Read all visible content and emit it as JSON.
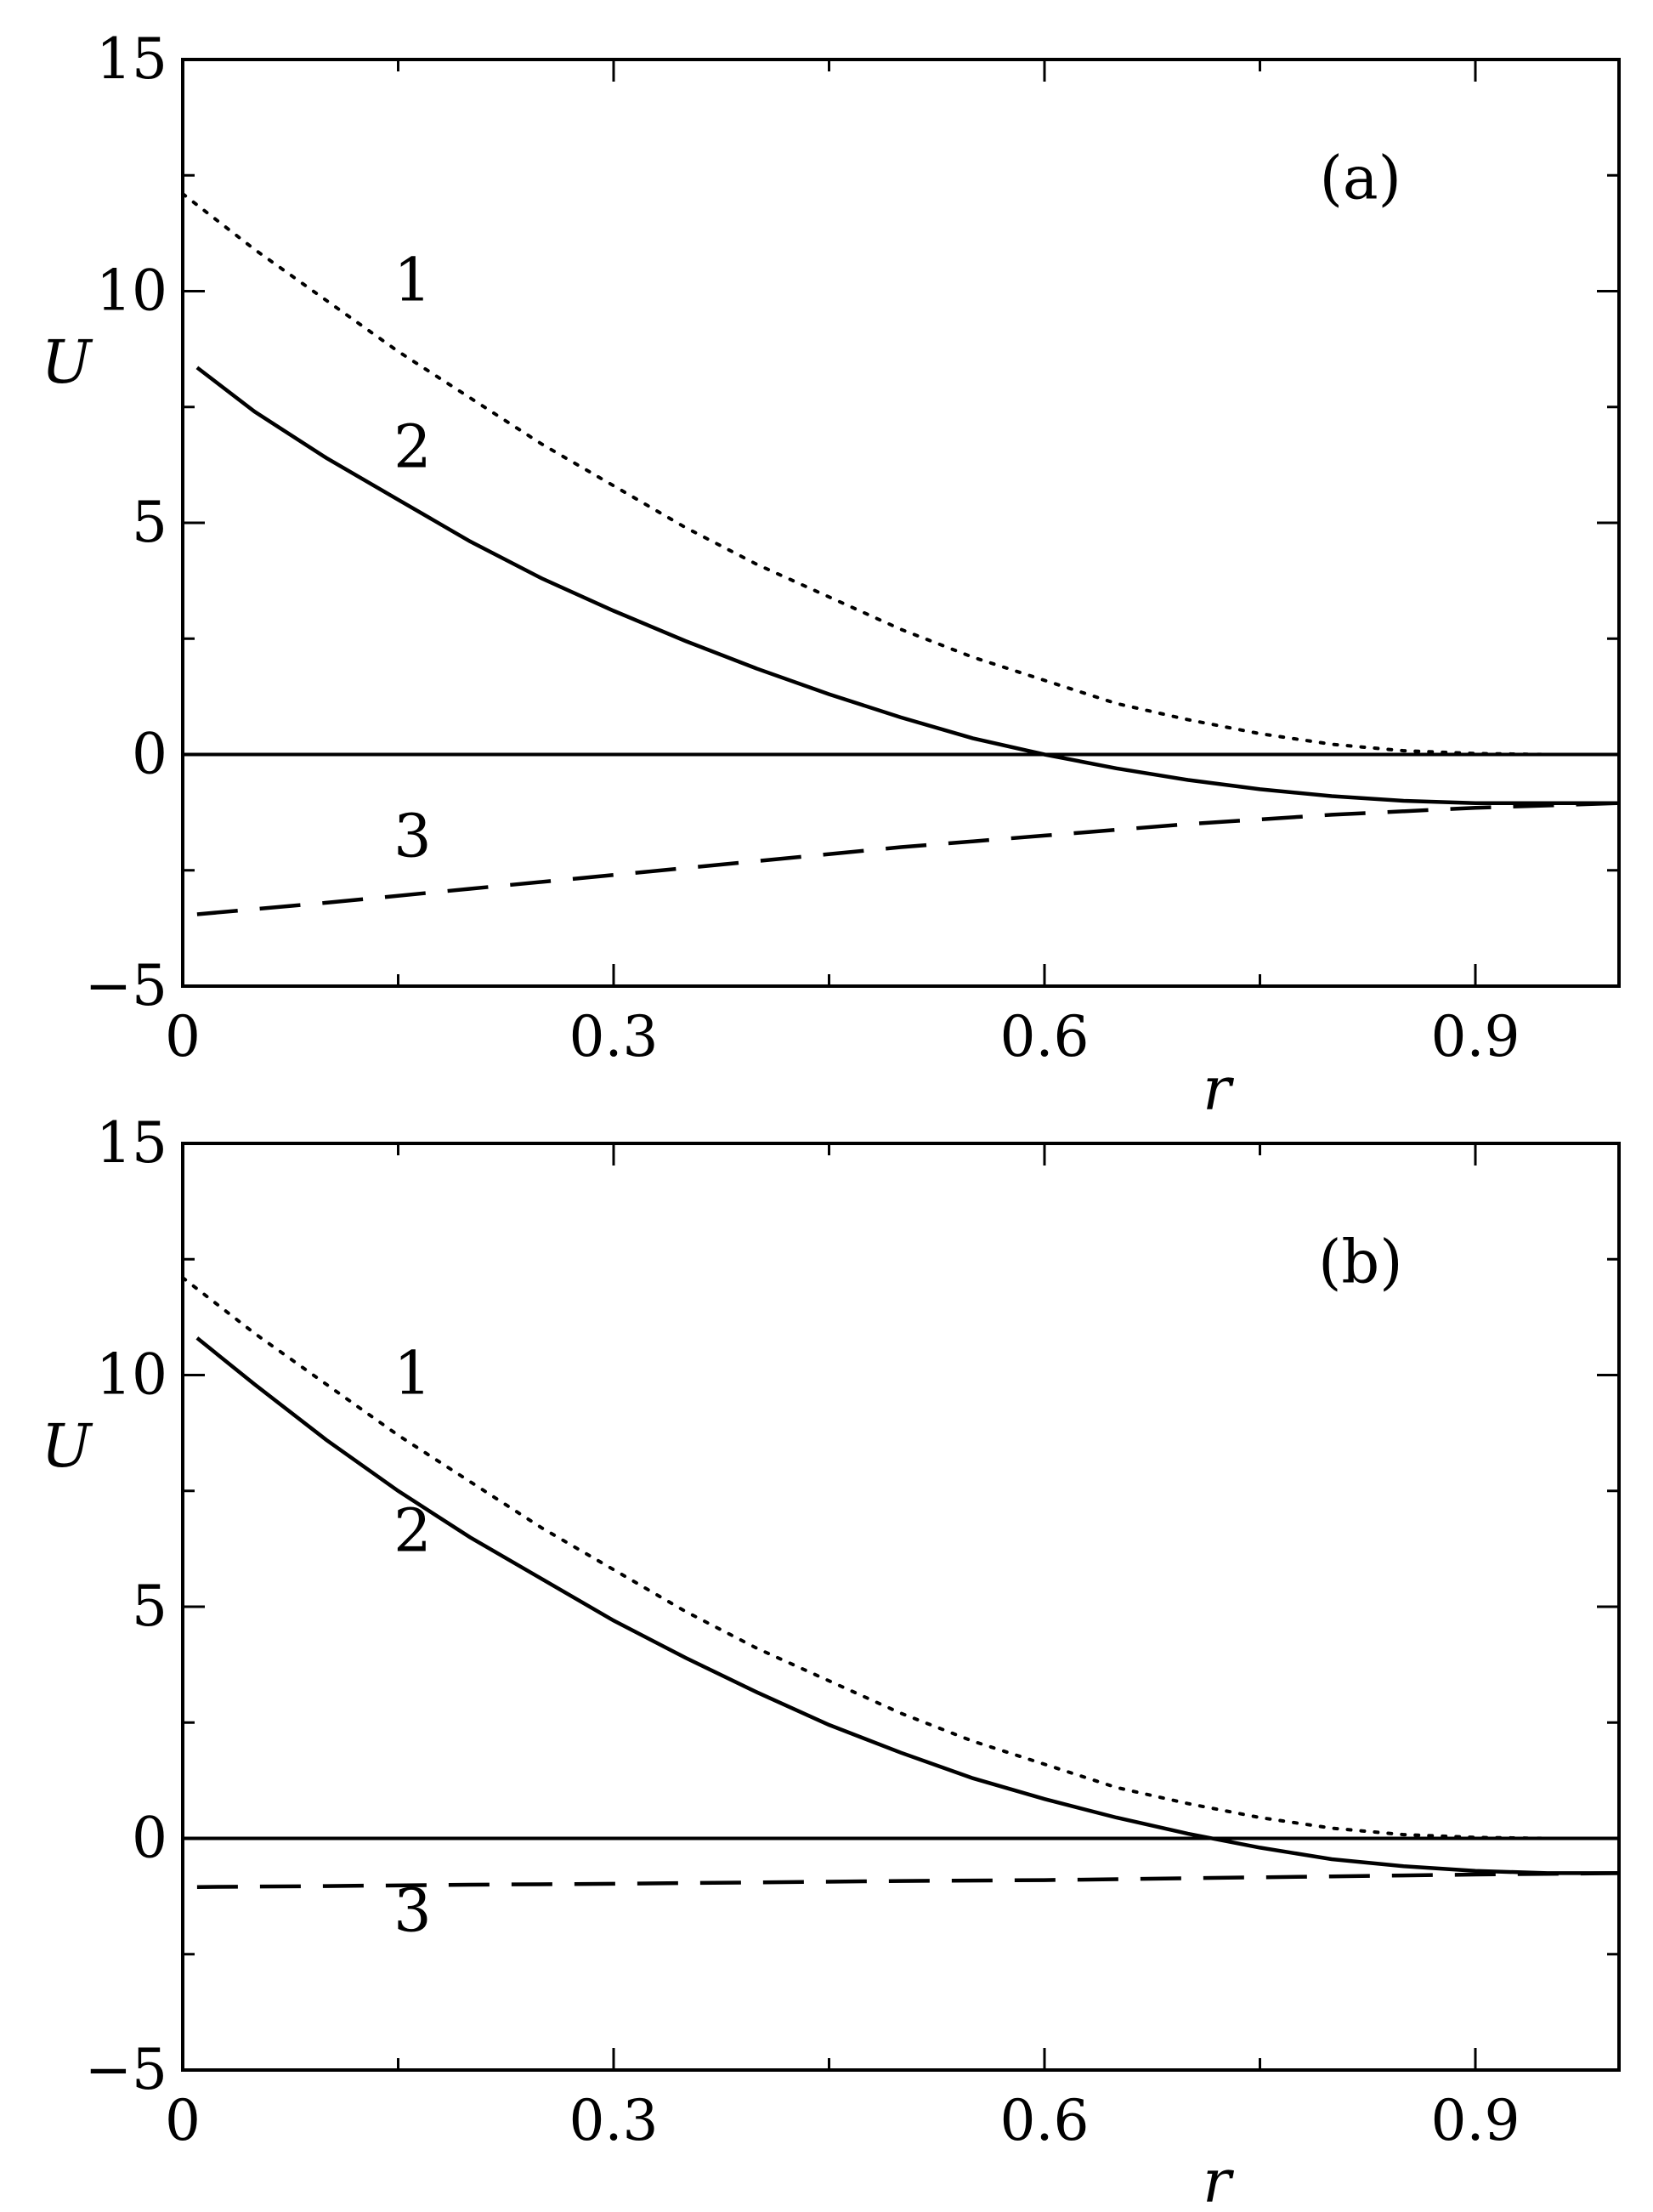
{
  "chart_data": [
    {
      "type": "line",
      "panel_label": "(a)",
      "xlabel": "r",
      "ylabel": "U",
      "xlim": [
        0,
        1.0
      ],
      "ylim": [
        -5,
        15
      ],
      "xticks": [
        0,
        0.3,
        0.6,
        0.9
      ],
      "xtick_labels": [
        "0",
        "0.3",
        "0.6",
        "0.9"
      ],
      "yticks": [
        -5,
        0,
        5,
        10,
        15
      ],
      "ytick_labels": [
        "−5",
        "0",
        "5",
        "10",
        "15"
      ],
      "grid": false,
      "legend": "none",
      "reference_line_y": 0,
      "series": [
        {
          "label": "1",
          "style": "dotted",
          "label_at": [
            0.16,
            9.8
          ],
          "x": [
            0,
            0.05,
            0.1,
            0.15,
            0.2,
            0.25,
            0.3,
            0.35,
            0.4,
            0.45,
            0.5,
            0.55,
            0.6,
            0.65,
            0.7,
            0.75,
            0.8,
            0.85,
            0.9,
            0.95,
            1.0
          ],
          "y": [
            12.1,
            10.9,
            9.8,
            8.7,
            7.7,
            6.7,
            5.8,
            4.9,
            4.1,
            3.4,
            2.7,
            2.1,
            1.6,
            1.1,
            0.75,
            0.45,
            0.22,
            0.08,
            0.02,
            0.0,
            0.0
          ]
        },
        {
          "label": "2",
          "style": "solid",
          "label_at": [
            0.16,
            6.2
          ],
          "x": [
            0.01,
            0.05,
            0.1,
            0.15,
            0.2,
            0.25,
            0.3,
            0.35,
            0.4,
            0.45,
            0.5,
            0.55,
            0.6,
            0.65,
            0.7,
            0.75,
            0.8,
            0.85,
            0.9,
            0.95,
            1.0
          ],
          "y": [
            8.35,
            7.4,
            6.4,
            5.5,
            4.6,
            3.8,
            3.1,
            2.45,
            1.85,
            1.3,
            0.8,
            0.35,
            0.0,
            -0.3,
            -0.55,
            -0.75,
            -0.9,
            -1.0,
            -1.05,
            -1.05,
            -1.05
          ]
        },
        {
          "label": "3",
          "style": "dashed",
          "label_at": [
            0.16,
            -2.2
          ],
          "x": [
            0.01,
            0.1,
            0.2,
            0.3,
            0.4,
            0.5,
            0.6,
            0.7,
            0.8,
            0.9,
            1.0
          ],
          "y": [
            -3.45,
            -3.2,
            -2.9,
            -2.6,
            -2.3,
            -2.0,
            -1.75,
            -1.5,
            -1.3,
            -1.15,
            -1.05
          ]
        }
      ]
    },
    {
      "type": "line",
      "panel_label": "(b)",
      "xlabel": "r",
      "ylabel": "U",
      "xlim": [
        0,
        1.0
      ],
      "ylim": [
        -5,
        15
      ],
      "xticks": [
        0,
        0.3,
        0.6,
        0.9
      ],
      "xtick_labels": [
        "0",
        "0.3",
        "0.6",
        "0.9"
      ],
      "yticks": [
        -5,
        0,
        5,
        10,
        15
      ],
      "ytick_labels": [
        "−5",
        "0",
        "5",
        "10",
        "15"
      ],
      "grid": false,
      "legend": "none",
      "reference_line_y": 0,
      "series": [
        {
          "label": "1",
          "style": "dotted",
          "label_at": [
            0.16,
            9.6
          ],
          "x": [
            0,
            0.05,
            0.1,
            0.15,
            0.2,
            0.25,
            0.3,
            0.35,
            0.4,
            0.45,
            0.5,
            0.55,
            0.6,
            0.65,
            0.7,
            0.75,
            0.8,
            0.85,
            0.9,
            0.95,
            1.0
          ],
          "y": [
            12.1,
            10.9,
            9.8,
            8.7,
            7.7,
            6.7,
            5.8,
            4.9,
            4.1,
            3.4,
            2.7,
            2.1,
            1.6,
            1.1,
            0.75,
            0.45,
            0.22,
            0.08,
            0.02,
            0.0,
            0.0
          ]
        },
        {
          "label": "2",
          "style": "solid",
          "label_at": [
            0.16,
            6.2
          ],
          "x": [
            0.01,
            0.05,
            0.1,
            0.15,
            0.2,
            0.25,
            0.3,
            0.35,
            0.4,
            0.45,
            0.5,
            0.55,
            0.6,
            0.65,
            0.7,
            0.75,
            0.8,
            0.85,
            0.9,
            0.95,
            1.0
          ],
          "y": [
            10.8,
            9.8,
            8.6,
            7.5,
            6.5,
            5.6,
            4.7,
            3.9,
            3.15,
            2.45,
            1.85,
            1.3,
            0.85,
            0.45,
            0.1,
            -0.2,
            -0.45,
            -0.6,
            -0.7,
            -0.75,
            -0.75
          ]
        },
        {
          "label": "3",
          "style": "dashed",
          "label_at": [
            0.16,
            -2.0
          ],
          "x": [
            0.01,
            0.1,
            0.2,
            0.3,
            0.4,
            0.5,
            0.6,
            0.7,
            0.8,
            0.9,
            1.0
          ],
          "y": [
            -1.05,
            -1.03,
            -1.0,
            -0.98,
            -0.95,
            -0.92,
            -0.9,
            -0.86,
            -0.82,
            -0.78,
            -0.75
          ]
        }
      ]
    }
  ]
}
